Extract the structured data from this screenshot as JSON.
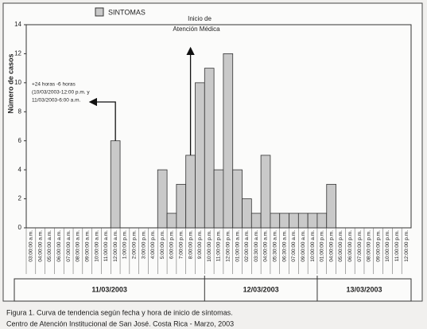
{
  "chart_data": {
    "type": "bar",
    "legend": "SINTOMAS",
    "ylabel": "Número de casos",
    "color": "#c9c9c9",
    "categories": [
      "03:00:00 a.m.",
      "04:00:00 a.m.",
      "05:00:00 a.m.",
      "06:00:00 a.m.",
      "07:00:00 a.m.",
      "08:00:00 a.m.",
      "09:00:00 a.m.",
      "10:00:00 a.m.",
      "11:00:00 a.m.",
      "12:00:00 a.m.",
      "1:00:00 p.m.",
      "2:00:00 p.m.",
      "3:00:00 p.m.",
      "4:00:00 p.m.",
      "5:00:00 p.m.",
      "6:00:00 p.m.",
      "7:00:00 p.m.",
      "8:00:00 p.m.",
      "9:00:00 p.m.",
      "10:00:00 p.m.",
      "11:00:00 p.m.",
      "12:00:00 p.m.",
      "01:00:00 a.m.",
      "02:00:00 a.m.",
      "03:30:00 a.m.",
      "04:00:00 a.m.",
      "05:30:00 a.m.",
      "06:30:00 a.m.",
      "07:00:00 a.m.",
      "09:00:00 a.m.",
      "10:00:00 a.m.",
      "01:00:00 p.m.",
      "04:00:00 p.m.",
      "05:00:00 p.m.",
      "06:00:00 p.m.",
      "07:00:00 p.m.",
      "08:00:00 p.m.",
      "09:00:00 p.m.",
      "10:00:00 p.m.",
      "11:00:00 p.m.",
      "12:00:00 p.m."
    ],
    "values": [
      0,
      0,
      0,
      0,
      0,
      0,
      0,
      0,
      0,
      6,
      0,
      0,
      0,
      0,
      4,
      1,
      3,
      5,
      10,
      11,
      4,
      12,
      4,
      2,
      1,
      5,
      1,
      1,
      1,
      1,
      1,
      1,
      3,
      0,
      0,
      0,
      0,
      0,
      0,
      0,
      0
    ],
    "ylim": [
      0,
      14
    ],
    "yticks": [
      0,
      2,
      4,
      6,
      8,
      10,
      12,
      14
    ],
    "x_groups": [
      {
        "label": "11/03/2003",
        "span": 19
      },
      {
        "label": "12/03/2003",
        "span": 12
      },
      {
        "label": "13/03/2003",
        "span": 10
      }
    ],
    "annotations": [
      {
        "lines": [
          "Inicio de",
          "Atención Médica"
        ]
      },
      {
        "lines": [
          "+24 horas -6 horas",
          "(10/03/2003-12:00 p.m. y",
          "11/03/2003-6:00 a.m."
        ]
      }
    ]
  },
  "caption": [
    "Figura 1. Curva de tendencia según fecha y hora de inicio de síntomas.",
    "Centro de Atención Institucional de San José. Costa Rica - Marzo, 2003"
  ]
}
